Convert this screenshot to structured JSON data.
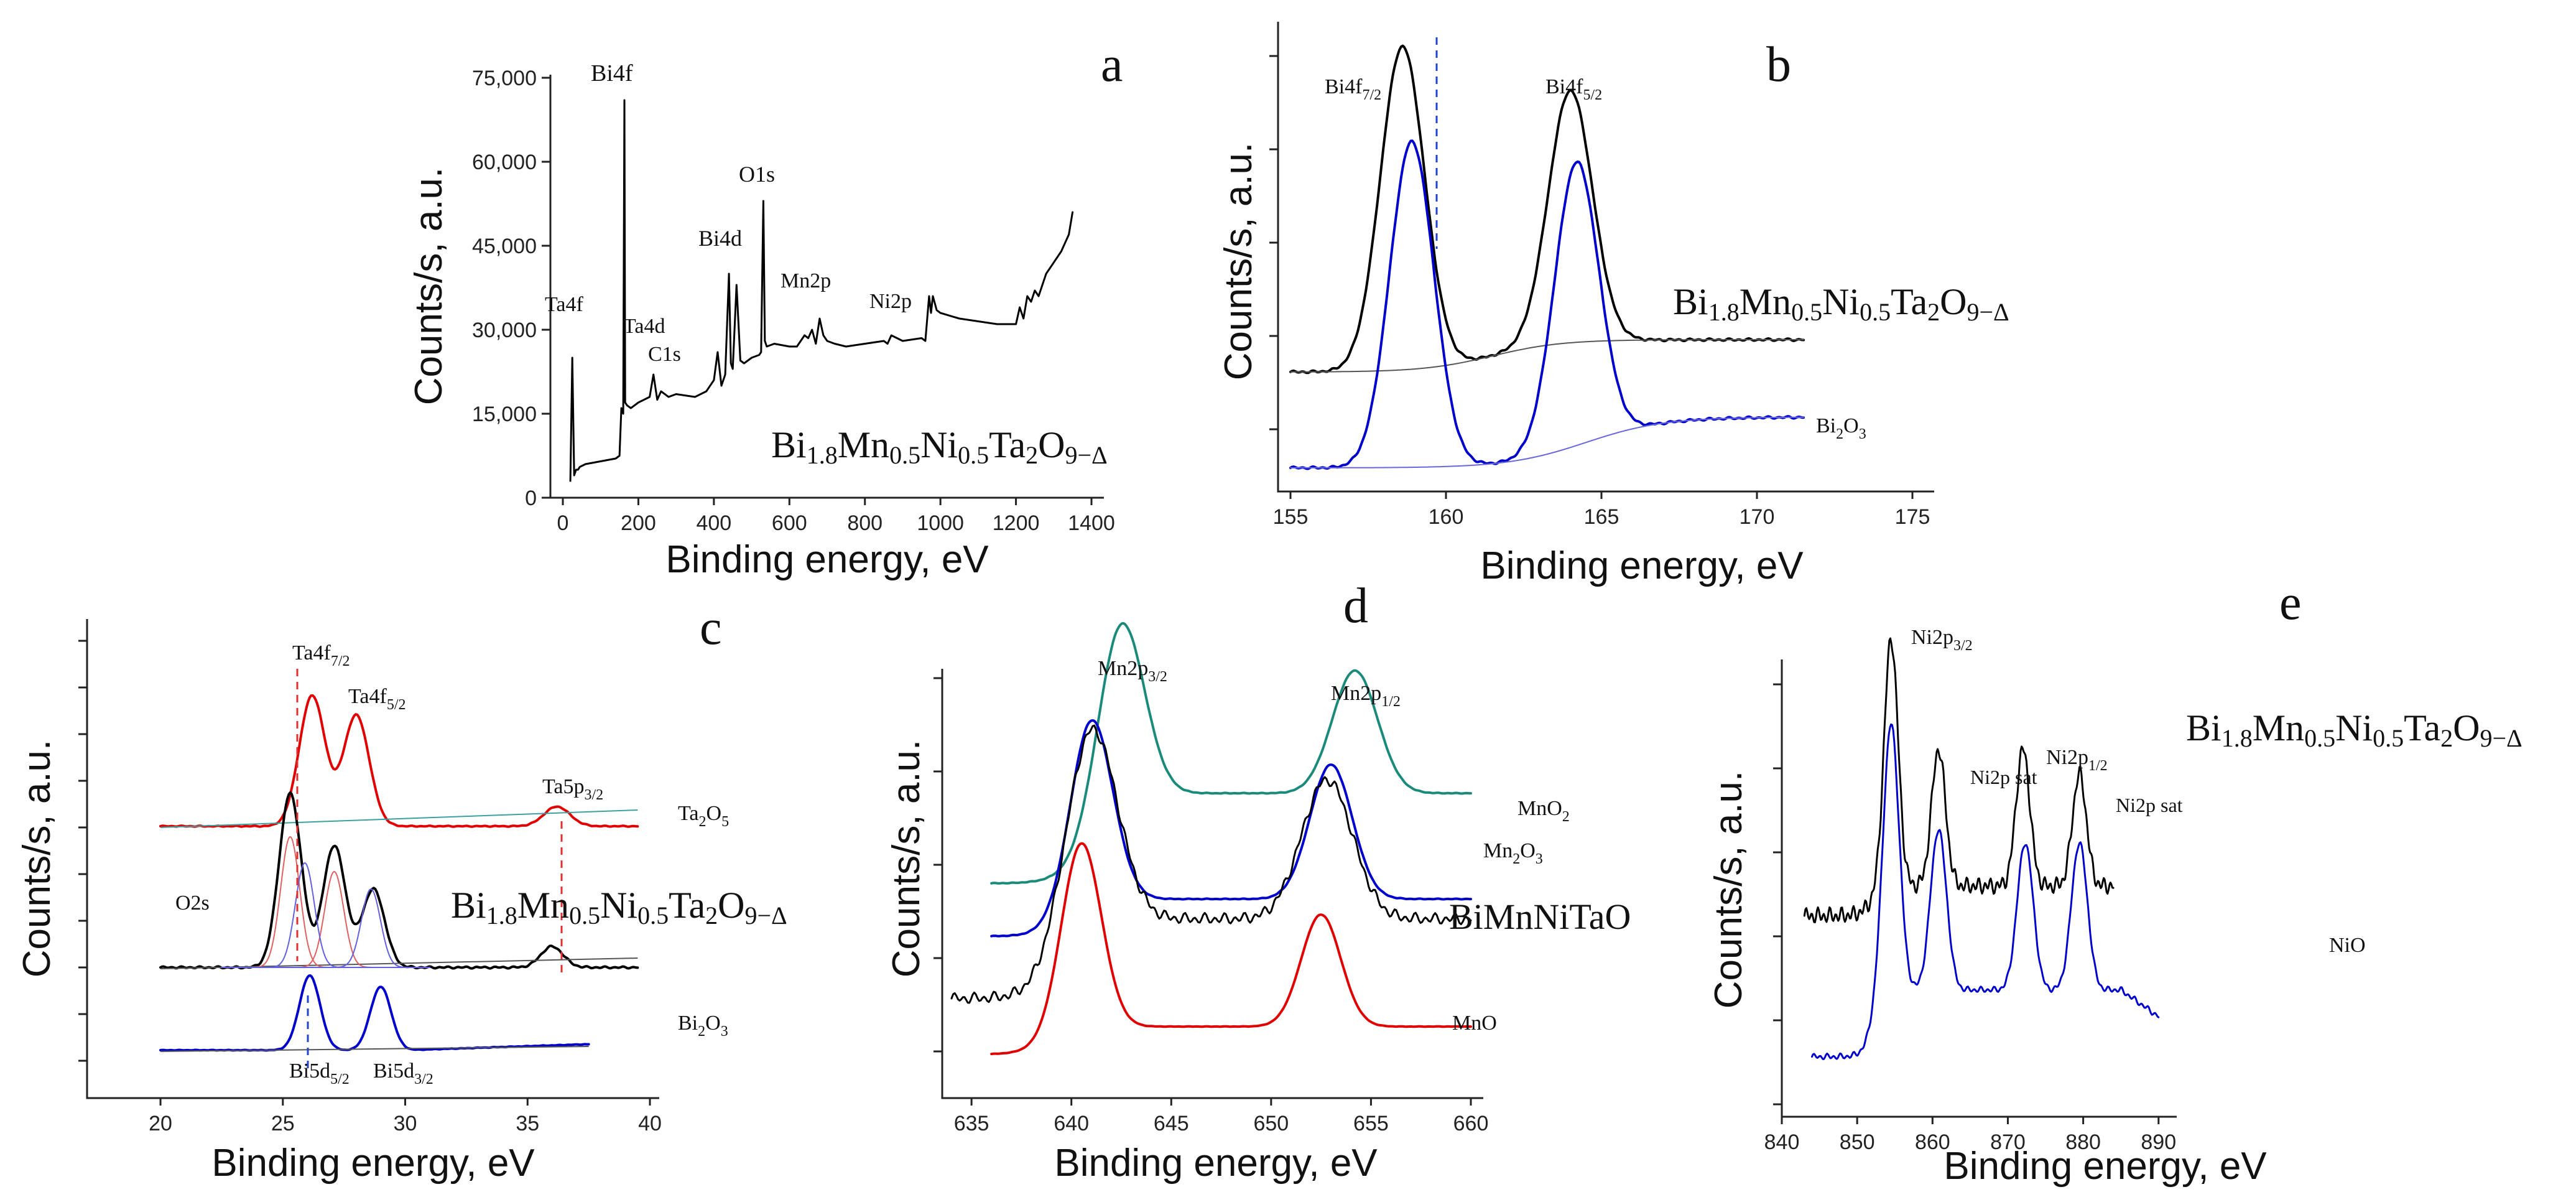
{
  "figure": {
    "panels": [
      {
        "id": "a",
        "label": "a",
        "xlabel": "Binding energy, eV",
        "ylabel": "Counts/s, a.u.",
        "xticks": [
          "0",
          "200",
          "400",
          "600",
          "800",
          "1000",
          "1200",
          "1400"
        ],
        "yticks": [
          "0",
          "15,000",
          "30,000",
          "45,000",
          "60,000",
          "75,000"
        ],
        "formula": {
          "parts": [
            "Bi",
            "1.8",
            "Mn",
            "0.5",
            "Ni",
            "0.5",
            "Ta",
            "2",
            "O",
            "9−Δ"
          ]
        },
        "annotations": [
          "Bi4f",
          "O1s",
          "Bi4d",
          "Mn2p",
          "Ni2p",
          "Ta4f",
          "Ta4d",
          "C1s"
        ]
      },
      {
        "id": "b",
        "label": "b",
        "xlabel": "Binding energy, eV",
        "ylabel": "Counts/s, a.u.",
        "xticks": [
          "155",
          "160",
          "165",
          "170",
          "175"
        ],
        "formula": {
          "parts": [
            "Bi",
            "1.8",
            "Mn",
            "0.5",
            "Ni",
            "0.5",
            "Ta",
            "2",
            "O",
            "9−Δ"
          ]
        },
        "annotations": [
          {
            "base": "Bi4f",
            "sub": "7/2"
          },
          {
            "base": "Bi4f",
            "sub": "5/2"
          },
          {
            "base": "Bi",
            "sub": "2",
            "tail": "O",
            "sub2": "3"
          }
        ]
      },
      {
        "id": "c",
        "label": "c",
        "xlabel": "Binding energy, eV",
        "ylabel": "Counts/s, a.u.",
        "xticks": [
          "20",
          "25",
          "30",
          "35",
          "40"
        ],
        "formula": {
          "parts": [
            "Bi",
            "1.8",
            "Mn",
            "0.5",
            "Ni",
            "0.5",
            "Ta",
            "2",
            "O",
            "9−Δ"
          ]
        },
        "annotations": [
          {
            "base": "Ta4f",
            "sub": "7/2"
          },
          {
            "base": "Ta4f",
            "sub": "5/2"
          },
          {
            "base": "Ta5p",
            "sub": "3/2"
          },
          {
            "base": "Ta",
            "sub": "2",
            "tail": "O",
            "sub2": "5"
          },
          {
            "base": "O2s"
          },
          {
            "base": "Bi",
            "sub": "2",
            "tail": "O",
            "sub2": "3"
          },
          {
            "base": "Bi5d",
            "sub": "5/2"
          },
          {
            "base": "Bi5d",
            "sub": "3/2"
          }
        ]
      },
      {
        "id": "d",
        "label": "d",
        "xlabel": "Binding energy, eV",
        "ylabel": "Counts/s, a.u.",
        "xticks": [
          "635",
          "640",
          "645",
          "650",
          "655",
          "660"
        ],
        "annotations": [
          {
            "base": "Mn2p",
            "sub": "3/2"
          },
          {
            "base": "Mn2p",
            "sub": "1/2"
          },
          {
            "base": "MnO",
            "sub": "2"
          },
          {
            "base": "Mn",
            "sub": "2",
            "tail": "O",
            "sub2": "3"
          },
          {
            "base": "BiMnNiTaO"
          },
          {
            "base": "MnO"
          }
        ]
      },
      {
        "id": "e",
        "label": "e",
        "xlabel": "Binding energy, eV",
        "ylabel": "Counts/s, a.u.",
        "xticks": [
          "840",
          "850",
          "860",
          "870",
          "880",
          "890"
        ],
        "formula": {
          "parts": [
            "Bi",
            "1.8",
            "Mn",
            "0.5",
            "Ni",
            "0.5",
            "Ta",
            "2",
            "O",
            "9−Δ"
          ]
        },
        "annotations": [
          {
            "base": "Ni2p",
            "sub": "3/2"
          },
          {
            "base": "Ni2p sat"
          },
          {
            "base": "Ni2p",
            "sub": "1/2"
          },
          {
            "base": "Ni2p sat"
          },
          {
            "base": "NiO"
          }
        ]
      }
    ]
  },
  "chart_data": [
    {
      "type": "line",
      "panel": "a",
      "xlim": [
        0,
        1400
      ],
      "ylim": [
        0,
        75000
      ],
      "series": [
        {
          "color": "#000000",
          "x": [
            20,
            25,
            30,
            35,
            40,
            45,
            60,
            100,
            140,
            150,
            155,
            160,
            163,
            165,
            170,
            180,
            200,
            230,
            240,
            250,
            260,
            280,
            300,
            350,
            380,
            400,
            410,
            420,
            430,
            440,
            445,
            450,
            460,
            470,
            480,
            500,
            520,
            525,
            531,
            535,
            540,
            560,
            600,
            620,
            640,
            650,
            660,
            670,
            680,
            690,
            700,
            720,
            750,
            800,
            850,
            860,
            870,
            900,
            950,
            960,
            970,
            975,
            980,
            990,
            1000,
            1050,
            1100,
            1150,
            1200,
            1210,
            1220,
            1230,
            1240,
            1250,
            1260,
            1280,
            1300,
            1320,
            1340,
            1350
          ],
          "y": [
            3000,
            25000,
            4000,
            5000,
            5000,
            5500,
            6000,
            6500,
            7000,
            7500,
            16000,
            15000,
            71000,
            17000,
            16500,
            16000,
            17000,
            18000,
            22000,
            17500,
            19000,
            18000,
            18500,
            18000,
            19000,
            21000,
            26000,
            20000,
            22000,
            40000,
            24000,
            23000,
            38000,
            24500,
            24000,
            25000,
            25500,
            26000,
            53000,
            28000,
            27000,
            27500,
            27000,
            27000,
            29000,
            28500,
            30000,
            27500,
            32000,
            29000,
            28000,
            27500,
            27000,
            27500,
            28000,
            27500,
            29000,
            28000,
            28500,
            28000,
            36000,
            33000,
            36000,
            33500,
            33000,
            32000,
            31500,
            31000,
            31000,
            34000,
            32000,
            36000,
            35000,
            37000,
            36000,
            40000,
            42000,
            44000,
            47000,
            51000
          ]
        }
      ]
    },
    {
      "type": "line",
      "panel": "b",
      "xlim": [
        155,
        175
      ],
      "series": [
        {
          "color": "#000000",
          "peaks": [
            [
              158.6,
              1.0
            ],
            [
              164.0,
              0.78
            ]
          ]
        },
        {
          "color": "#0000cc",
          "peaks": [
            [
              158.9,
              0.77
            ],
            [
              164.2,
              0.67
            ]
          ]
        }
      ]
    },
    {
      "type": "line",
      "panel": "c",
      "xlim": [
        17,
        40
      ],
      "series": [
        {
          "color": "#e00000",
          "peaks": [
            [
              26.2,
              1.0
            ],
            [
              28.0,
              0.85
            ],
            [
              36.2,
              0.15
            ]
          ]
        },
        {
          "color": "#000000",
          "peaks": [
            [
              25.3,
              1.0
            ],
            [
              27.1,
              0.7
            ],
            [
              28.7,
              0.45
            ],
            [
              36.0,
              0.12
            ]
          ]
        },
        {
          "color": "#0000cc",
          "peaks": [
            [
              26.1,
              1.0
            ],
            [
              29.0,
              0.85
            ]
          ]
        }
      ]
    },
    {
      "type": "line",
      "panel": "d",
      "xlim": [
        634,
        660
      ],
      "series": [
        {
          "color": "#1a8a7a",
          "peaks": [
            [
              642.5,
              1.0
            ],
            [
              654.2,
              0.68
            ]
          ]
        },
        {
          "color": "#0000cc",
          "peaks": [
            [
              641.0,
              1.0
            ],
            [
              653.0,
              0.72
            ]
          ]
        },
        {
          "color": "#000000",
          "peaks": [
            [
              641.0,
              1.0
            ],
            [
              652.8,
              0.7
            ]
          ]
        },
        {
          "color": "#e00000",
          "peaks": [
            [
              640.5,
              1.0
            ],
            [
              652.5,
              0.6
            ]
          ]
        }
      ]
    },
    {
      "type": "line",
      "panel": "e",
      "xlim": [
        840,
        892
      ],
      "series": [
        {
          "color": "#000000",
          "peaks": [
            [
              854.5,
              1.0
            ],
            [
              860.8,
              0.55
            ],
            [
              872.0,
              0.55
            ],
            [
              879.5,
              0.45
            ]
          ]
        },
        {
          "color": "#0000cc",
          "peaks": [
            [
              854.5,
              1.0
            ],
            [
              860.8,
              0.6
            ],
            [
              872.3,
              0.55
            ],
            [
              879.5,
              0.55
            ]
          ]
        }
      ]
    }
  ]
}
